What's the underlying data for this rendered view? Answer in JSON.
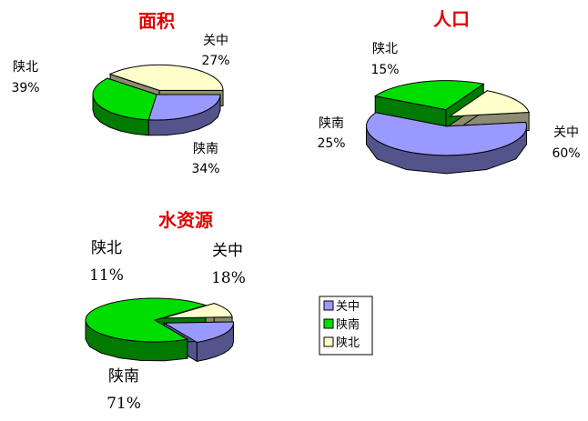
{
  "legend": {
    "items": [
      {
        "label": "关中",
        "color": "#9999ff"
      },
      {
        "label": "陕南",
        "color": "#00dd00"
      },
      {
        "label": "陕北",
        "color": "#ffffcc"
      }
    ]
  },
  "chart_data": [
    {
      "type": "pie",
      "title": "面积",
      "categories": [
        "关中",
        "陕南",
        "陕北"
      ],
      "values": [
        27,
        34,
        39
      ],
      "value_labels": [
        "27%",
        "34%",
        "39%"
      ]
    },
    {
      "type": "pie",
      "title": "人口",
      "categories": [
        "关中",
        "陕南",
        "陕北"
      ],
      "values": [
        60,
        25,
        15
      ],
      "value_labels": [
        "60%",
        "25%",
        "15%"
      ]
    },
    {
      "type": "pie",
      "title": "水资源",
      "categories": [
        "关中",
        "陕南",
        "陕北"
      ],
      "values": [
        18,
        71,
        11
      ],
      "value_labels": [
        "18%",
        "71%",
        "11%"
      ]
    }
  ]
}
